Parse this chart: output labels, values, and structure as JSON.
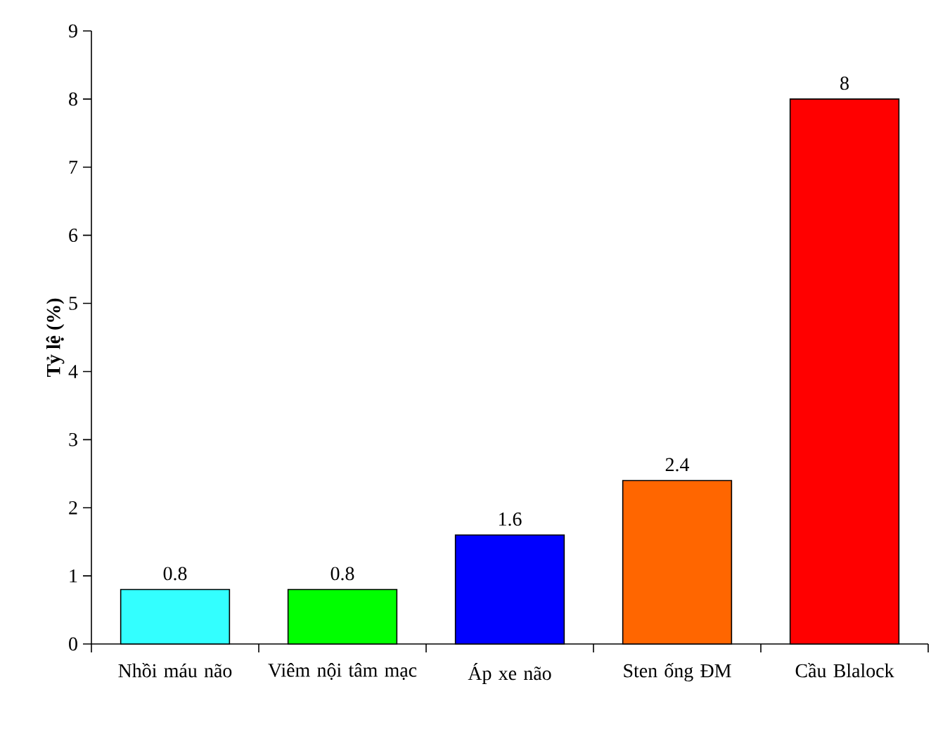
{
  "chart_data": {
    "type": "bar",
    "ylabel": "Tỷ lệ (%)",
    "categories": [
      "Nhồi máu não",
      "Viêm nội tâm mạc",
      "Áp xe não",
      "Sten ống ĐM",
      "Cầu Blalock"
    ],
    "values": [
      0.8,
      0.8,
      1.6,
      2.4,
      8
    ],
    "colors": [
      "#33ffff",
      "#00ff00",
      "#0000ff",
      "#ff6600",
      "#ff0000"
    ],
    "ylim": [
      0,
      9
    ],
    "yticks": [
      0,
      1,
      2,
      3,
      4,
      5,
      6,
      7,
      8,
      9
    ],
    "data_labels": true
  }
}
